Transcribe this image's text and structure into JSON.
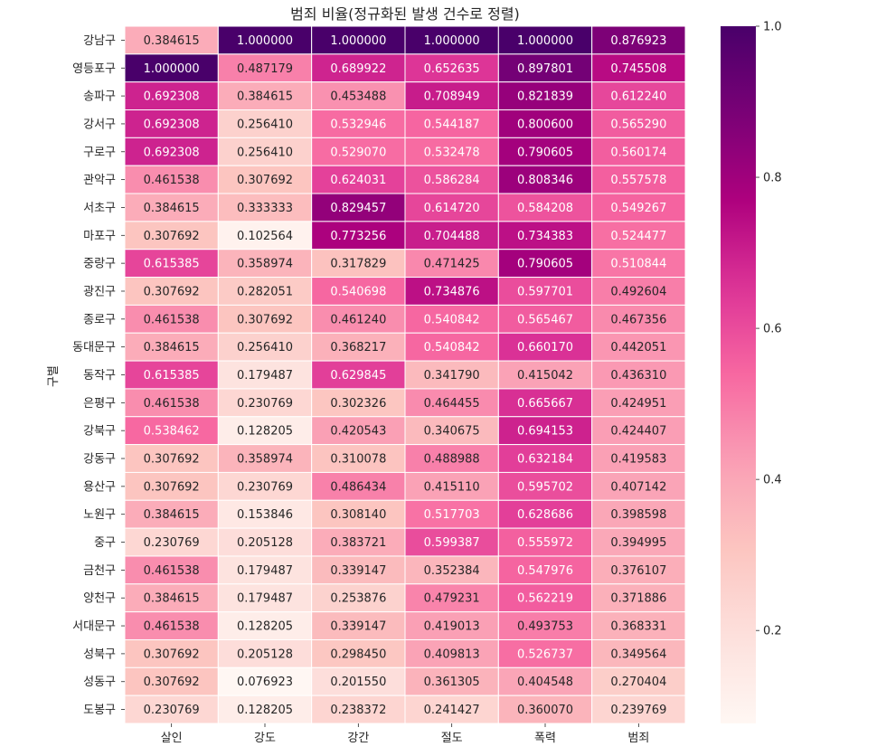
{
  "chart_data": {
    "type": "heatmap",
    "title": "범죄 비율(정규화된 발생 건수로 정렬)",
    "ylabel": "구별",
    "xlabel": "",
    "columns": [
      "살인",
      "강도",
      "강간",
      "절도",
      "폭력",
      "범죄"
    ],
    "rows": [
      "강남구",
      "영등포구",
      "송파구",
      "강서구",
      "구로구",
      "관악구",
      "서초구",
      "마포구",
      "중랑구",
      "광진구",
      "종로구",
      "동대문구",
      "동작구",
      "은평구",
      "강북구",
      "강동구",
      "용산구",
      "노원구",
      "중구",
      "금천구",
      "양천구",
      "서대문구",
      "성북구",
      "성동구",
      "도봉구"
    ],
    "values": [
      [
        0.384615,
        1.0,
        1.0,
        1.0,
        1.0,
        0.876923
      ],
      [
        1.0,
        0.487179,
        0.689922,
        0.652635,
        0.897801,
        0.745508
      ],
      [
        0.692308,
        0.384615,
        0.453488,
        0.708949,
        0.821839,
        0.61224
      ],
      [
        0.692308,
        0.25641,
        0.532946,
        0.544187,
        0.8006,
        0.56529
      ],
      [
        0.692308,
        0.25641,
        0.52907,
        0.532478,
        0.790605,
        0.560174
      ],
      [
        0.461538,
        0.307692,
        0.624031,
        0.586284,
        0.808346,
        0.557578
      ],
      [
        0.384615,
        0.333333,
        0.829457,
        0.61472,
        0.584208,
        0.549267
      ],
      [
        0.307692,
        0.102564,
        0.773256,
        0.704488,
        0.734383,
        0.524477
      ],
      [
        0.615385,
        0.358974,
        0.317829,
        0.471425,
        0.790605,
        0.510844
      ],
      [
        0.307692,
        0.282051,
        0.540698,
        0.734876,
        0.597701,
        0.492604
      ],
      [
        0.461538,
        0.307692,
        0.46124,
        0.540842,
        0.565467,
        0.467356
      ],
      [
        0.384615,
        0.25641,
        0.368217,
        0.540842,
        0.66017,
        0.442051
      ],
      [
        0.615385,
        0.179487,
        0.629845,
        0.34179,
        0.415042,
        0.43631
      ],
      [
        0.461538,
        0.230769,
        0.302326,
        0.464455,
        0.665667,
        0.424951
      ],
      [
        0.538462,
        0.128205,
        0.420543,
        0.340675,
        0.694153,
        0.424407
      ],
      [
        0.307692,
        0.358974,
        0.310078,
        0.488988,
        0.632184,
        0.419583
      ],
      [
        0.307692,
        0.230769,
        0.486434,
        0.41511,
        0.595702,
        0.407142
      ],
      [
        0.384615,
        0.153846,
        0.30814,
        0.517703,
        0.628686,
        0.398598
      ],
      [
        0.230769,
        0.205128,
        0.383721,
        0.599387,
        0.555972,
        0.394995
      ],
      [
        0.461538,
        0.179487,
        0.339147,
        0.352384,
        0.547976,
        0.376107
      ],
      [
        0.384615,
        0.179487,
        0.253876,
        0.479231,
        0.562219,
        0.371886
      ],
      [
        0.461538,
        0.128205,
        0.339147,
        0.419013,
        0.493753,
        0.368331
      ],
      [
        0.307692,
        0.205128,
        0.29845,
        0.409813,
        0.526737,
        0.349564
      ],
      [
        0.307692,
        0.076923,
        0.20155,
        0.361305,
        0.404548,
        0.270404
      ],
      [
        0.230769,
        0.128205,
        0.238372,
        0.241427,
        0.36007,
        0.239769
      ]
    ],
    "vmin": 0.076923,
    "vmax": 1.0,
    "colormap": "RdPu",
    "colorbar_ticks": [
      {
        "value": 0.2,
        "label": "0.2"
      },
      {
        "value": 0.4,
        "label": "0.4"
      },
      {
        "value": 0.6,
        "label": "0.6"
      },
      {
        "value": 0.8,
        "label": "0.8"
      },
      {
        "value": 1.0,
        "label": "1.0"
      }
    ],
    "annotations": "cell values shown with 6 decimals",
    "grid": false,
    "cell_border_color": "#ffffff"
  }
}
